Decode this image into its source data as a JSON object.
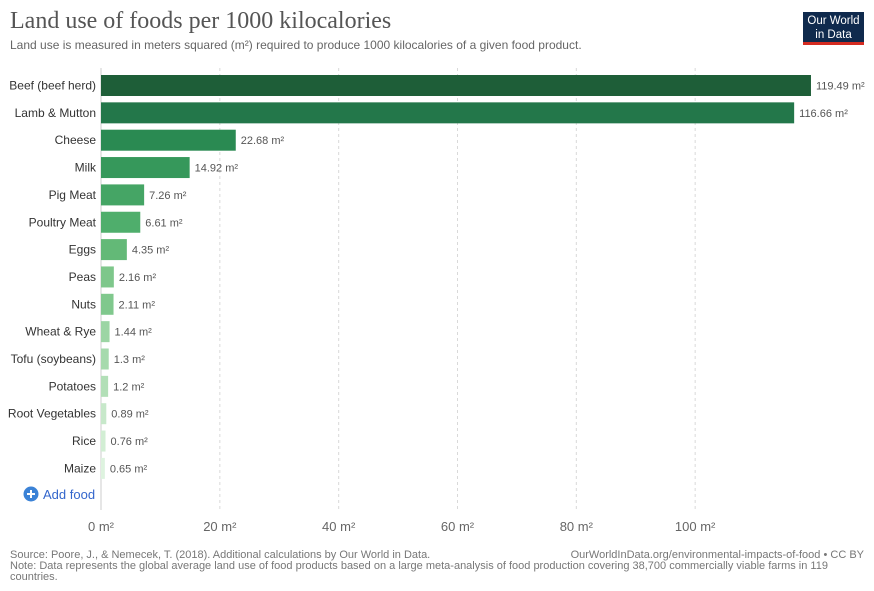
{
  "header": {
    "title": "Land use of foods per 1000 kilocalories",
    "subtitle": "Land use is measured in meters squared (m²) required to produce 1000 kilocalories of a given food product.",
    "logo_line1": "Our World",
    "logo_line2": "in Data"
  },
  "chart_data": {
    "type": "bar",
    "orientation": "horizontal",
    "title": "Land use of foods per 1000 kilocalories",
    "unit": "m²",
    "categories": [
      "Beef (beef herd)",
      "Lamb & Mutton",
      "Cheese",
      "Milk",
      "Pig Meat",
      "Poultry Meat",
      "Eggs",
      "Peas",
      "Nuts",
      "Wheat & Rye",
      "Tofu (soybeans)",
      "Potatoes",
      "Root Vegetables",
      "Rice",
      "Maize"
    ],
    "values": [
      119.49,
      116.66,
      22.68,
      14.92,
      7.26,
      6.61,
      4.35,
      2.16,
      2.11,
      1.44,
      1.3,
      1.2,
      0.89,
      0.76,
      0.65
    ],
    "value_labels": [
      "119.49 m²",
      "116.66 m²",
      "22.68 m²",
      "14.92 m²",
      "7.26 m²",
      "6.61 m²",
      "4.35 m²",
      "2.16 m²",
      "2.11 m²",
      "1.44 m²",
      "1.3 m²",
      "1.2 m²",
      "0.89 m²",
      "0.76 m²",
      "0.65 m²"
    ],
    "colors": [
      "#1e5e38",
      "#23774a",
      "#2a8a52",
      "#36985b",
      "#45a565",
      "#4fae6c",
      "#63b977",
      "#7ec78b",
      "#80c88d",
      "#9cd5a4",
      "#a6daad",
      "#b2dfb7",
      "#c7e8ca",
      "#d2eed4",
      "#def3df"
    ],
    "xlim": [
      0,
      120
    ],
    "x_ticks": [
      0,
      20,
      40,
      60,
      80,
      100
    ],
    "x_tick_labels": [
      "0 m²",
      "20 m²",
      "40 m²",
      "60 m²",
      "80 m²",
      "100 m²"
    ],
    "grid": "vertical-dashed"
  },
  "controls": {
    "add_food_label": "Add food",
    "add_food_icon": "plus-circle-icon"
  },
  "footer": {
    "source": "Source: Poore, J., & Nemecek, T. (2018). Additional calculations by Our World in Data.",
    "attribution": "OurWorldInData.org/environmental-impacts-of-food • CC BY",
    "note": "Note: Data represents the global average land use of food products based on a large meta-analysis of food production covering 38,700 commercially viable farms in 119 countries."
  }
}
